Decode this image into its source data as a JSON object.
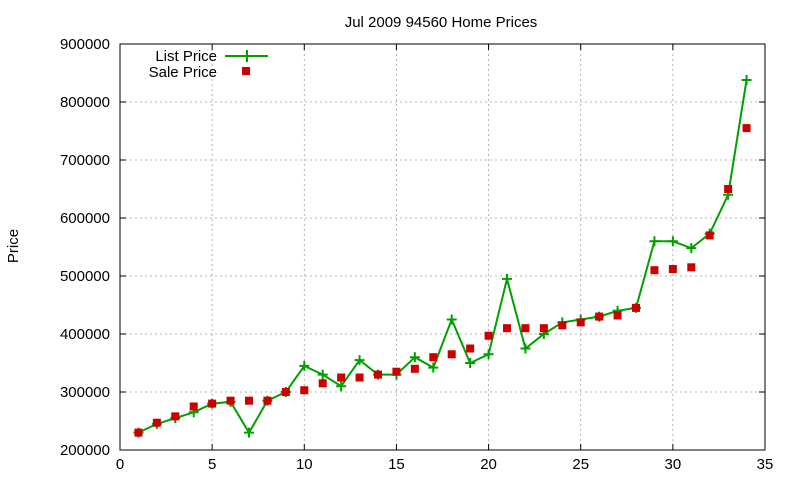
{
  "chart_data": {
    "type": "line",
    "title": "Jul 2009 94560 Home Prices",
    "xlabel": "",
    "ylabel": "Price",
    "xlim": [
      0,
      35
    ],
    "ylim": [
      200000,
      900000
    ],
    "x_ticks": [
      0,
      5,
      10,
      15,
      20,
      25,
      30,
      35
    ],
    "y_ticks": [
      200000,
      300000,
      400000,
      500000,
      600000,
      700000,
      800000,
      900000
    ],
    "grid": true,
    "legend_position": "top-left",
    "x": [
      1,
      2,
      3,
      4,
      5,
      6,
      7,
      8,
      9,
      10,
      11,
      12,
      13,
      14,
      15,
      16,
      17,
      18,
      19,
      20,
      21,
      22,
      23,
      24,
      25,
      26,
      27,
      28,
      29,
      30,
      31,
      32,
      33,
      34
    ],
    "series": [
      {
        "name": "List Price",
        "style": "line-with-plus-markers",
        "color": "#00a000",
        "values": [
          230000,
          245000,
          255000,
          265000,
          280000,
          283000,
          230000,
          285000,
          300000,
          345000,
          330000,
          310000,
          355000,
          330000,
          330000,
          360000,
          342000,
          425000,
          350000,
          365000,
          495000,
          375000,
          400000,
          420000,
          425000,
          430000,
          440000,
          445000,
          560000,
          560000,
          548000,
          573000,
          640000,
          838000
        ]
      },
      {
        "name": "Sale Price",
        "style": "square-markers",
        "color": "#cc0000",
        "values": [
          230000,
          247000,
          258000,
          275000,
          280000,
          285000,
          285000,
          285000,
          300000,
          303000,
          315000,
          325000,
          325000,
          330000,
          335000,
          340000,
          360000,
          365000,
          375000,
          397000,
          410000,
          410000,
          410000,
          415000,
          420000,
          430000,
          432000,
          445000,
          510000,
          512000,
          515000,
          570000,
          650000,
          755000
        ]
      }
    ]
  }
}
